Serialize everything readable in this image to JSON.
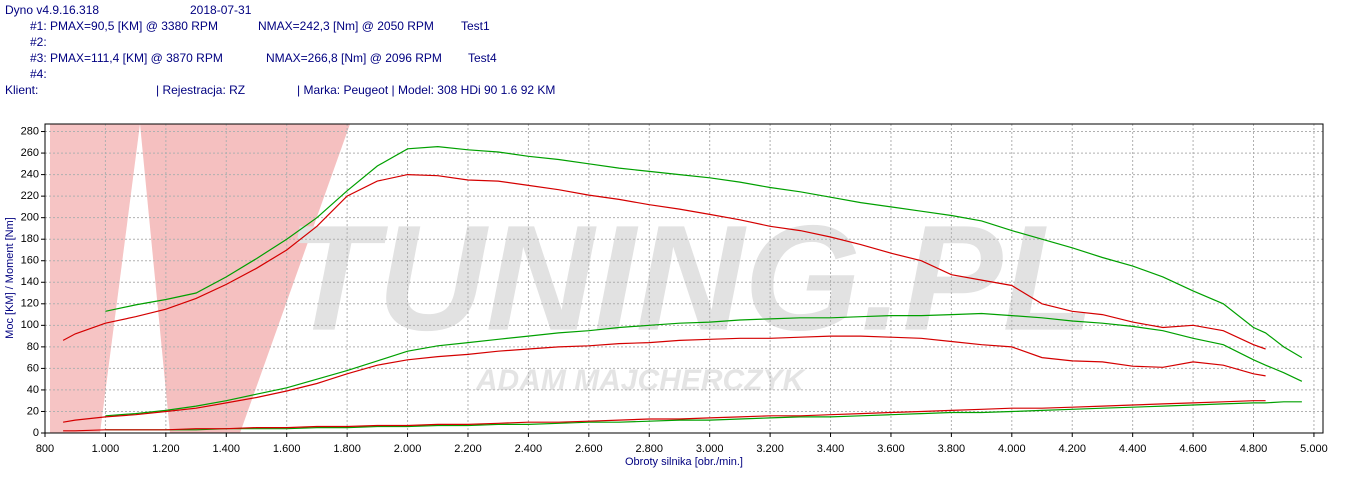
{
  "header": {
    "app": "Dyno v4.9.16.318",
    "date": "2018-07-31",
    "runs": [
      {
        "label": "#1: PMAX=90,5 [KM] @ 3380 RPM",
        "nmax": "NMAX=242,3 [Nm] @ 2050 RPM",
        "name": "Test1"
      },
      {
        "label": "#2:"
      },
      {
        "label": "#3: PMAX=111,4 [KM] @ 3870 RPM",
        "nmax": "NMAX=266,8 [Nm] @ 2096 RPM",
        "name": "Test4"
      },
      {
        "label": "#4:"
      }
    ],
    "client": "Klient:",
    "registration": "| Rejestracja: RZ",
    "vehicle": "| Marka: Peugeot | Model: 308 HDi 90 1.6 92 KM"
  },
  "chart_data": {
    "type": "line",
    "watermark": {
      "logo": "TUNING.PL",
      "author": "ADAM MAJCHERCZYK"
    },
    "y_label": "Moc [KM] / Moment [Nm]",
    "x_label": "Obroty silnika [obr./min.]",
    "xlim": [
      800,
      5030
    ],
    "ylim": [
      0,
      287
    ],
    "grid": true,
    "xticks": [
      800,
      {
        "value": 1000,
        "label": "1.000"
      },
      {
        "value": 1200,
        "label": "1.200"
      },
      {
        "value": 1400,
        "label": "1.400"
      },
      {
        "value": 1600,
        "label": "1.600"
      },
      {
        "value": 1800,
        "label": "1.800"
      },
      {
        "value": 2000,
        "label": "2.000"
      },
      {
        "value": 2200,
        "label": "2.200"
      },
      {
        "value": 2400,
        "label": "2.400"
      },
      {
        "value": 2600,
        "label": "2.600"
      },
      {
        "value": 2800,
        "label": "2.800"
      },
      {
        "value": 3000,
        "label": "3.000"
      },
      {
        "value": 3200,
        "label": "3.200"
      },
      {
        "value": 3400,
        "label": "3.400"
      },
      {
        "value": 3600,
        "label": "3.600"
      },
      {
        "value": 3800,
        "label": "3.800"
      },
      {
        "value": 4000,
        "label": "4.000"
      },
      {
        "value": 4200,
        "label": "4.200"
      },
      {
        "value": 4400,
        "label": "4.400"
      },
      {
        "value": 4600,
        "label": "4.600"
      },
      {
        "value": 4800,
        "label": "4.800"
      },
      {
        "value": 5000,
        "label": "5.000"
      }
    ],
    "yticks": [
      0,
      20,
      40,
      60,
      80,
      100,
      120,
      140,
      160,
      180,
      200,
      220,
      240,
      260,
      280
    ],
    "x": [
      860,
      900,
      1000,
      1100,
      1200,
      1300,
      1400,
      1500,
      1600,
      1700,
      1800,
      1900,
      2000,
      2100,
      2200,
      2300,
      2400,
      2500,
      2600,
      2700,
      2800,
      2900,
      3000,
      3100,
      3200,
      3300,
      3400,
      3500,
      3600,
      3700,
      3800,
      3900,
      4000,
      4100,
      4200,
      4300,
      4400,
      4500,
      4600,
      4700,
      4800,
      4840,
      4900,
      4960
    ],
    "series": [
      {
        "color": "#00a000",
        "values": [
          null,
          null,
          113,
          119,
          124,
          130,
          145,
          162,
          180,
          200,
          225,
          248,
          264,
          266,
          263,
          261,
          257,
          254,
          250,
          246,
          243,
          240,
          237,
          233,
          228,
          224,
          219,
          214,
          210,
          206,
          202,
          197,
          188,
          180,
          172,
          163,
          155,
          145,
          132,
          120,
          98,
          93,
          80,
          70
        ]
      },
      {
        "color": "#d40000",
        "values": [
          86,
          92,
          102,
          108,
          115,
          125,
          138,
          153,
          170,
          192,
          220,
          234,
          240,
          239,
          235,
          234,
          230,
          226,
          221,
          217,
          212,
          208,
          203,
          198,
          192,
          188,
          182,
          175,
          167,
          160,
          147,
          142,
          137,
          120,
          113,
          110,
          103,
          98,
          100,
          95,
          82,
          78,
          null,
          null
        ]
      },
      {
        "color": "#00a000",
        "values": [
          null,
          null,
          16,
          18,
          21,
          25,
          30,
          36,
          42,
          50,
          58,
          67,
          76,
          81,
          84,
          87,
          90,
          93,
          95,
          98,
          100,
          102,
          103,
          105,
          106,
          107,
          107,
          108,
          109,
          109,
          110,
          111,
          109,
          107,
          104,
          102,
          99,
          95,
          88,
          82,
          68,
          63,
          56,
          48
        ]
      },
      {
        "color": "#d40000",
        "values": [
          10,
          12,
          15,
          17,
          20,
          23,
          28,
          33,
          39,
          46,
          55,
          63,
          68,
          71,
          73,
          76,
          78,
          80,
          81,
          83,
          84,
          86,
          87,
          88,
          88,
          89,
          90,
          90,
          89,
          88,
          85,
          82,
          80,
          70,
          67,
          66,
          62,
          61,
          66,
          63,
          55,
          53,
          null,
          null
        ]
      },
      {
        "color": "#00a000",
        "values": [
          null,
          null,
          3,
          3,
          3,
          3,
          4,
          4,
          4,
          5,
          5,
          6,
          6,
          7,
          7,
          8,
          8,
          9,
          10,
          10,
          11,
          12,
          12,
          13,
          14,
          15,
          15,
          16,
          17,
          18,
          19,
          19,
          20,
          21,
          22,
          23,
          24,
          25,
          26,
          27,
          28,
          28,
          29,
          29
        ]
      },
      {
        "color": "#d40000",
        "values": [
          2,
          2,
          3,
          3,
          3,
          4,
          4,
          5,
          5,
          6,
          6,
          7,
          7,
          8,
          8,
          9,
          10,
          10,
          11,
          12,
          13,
          13,
          14,
          15,
          16,
          16,
          17,
          18,
          19,
          20,
          21,
          22,
          23,
          23,
          24,
          25,
          26,
          27,
          28,
          29,
          30,
          30,
          null,
          null
        ]
      }
    ]
  }
}
